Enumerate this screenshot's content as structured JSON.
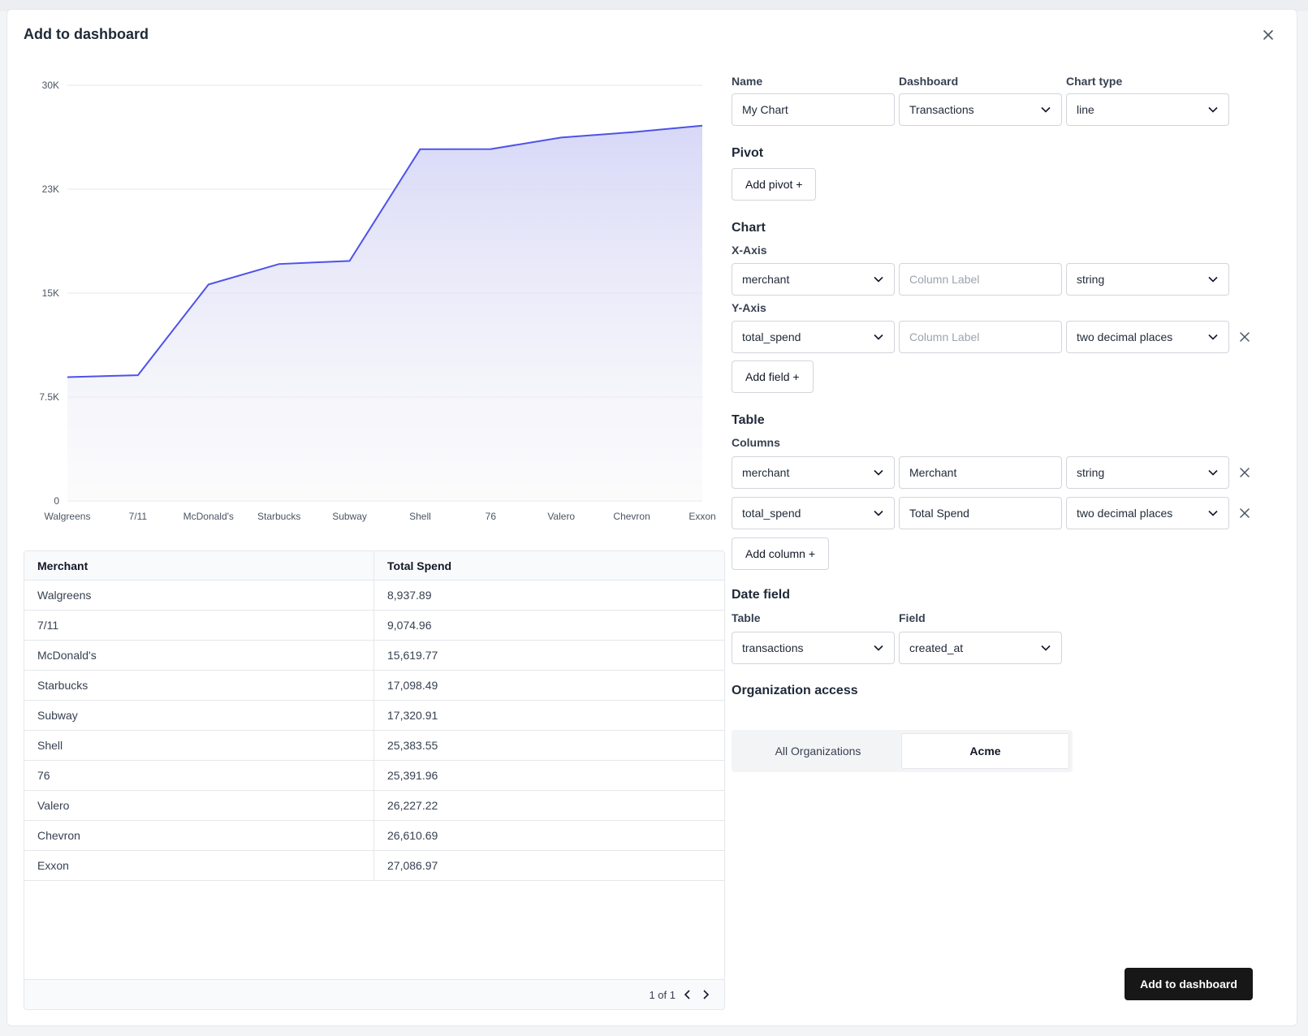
{
  "modal": {
    "title": "Add to dashboard",
    "close_icon": "close-icon",
    "submit_label": "Add to dashboard"
  },
  "chart_data": {
    "type": "area",
    "title": "",
    "xlabel": "",
    "ylabel": "",
    "categories": [
      "Walgreens",
      "7/11",
      "McDonald's",
      "Starbucks",
      "Subway",
      "Shell",
      "76",
      "Valero",
      "Chevron",
      "Exxon"
    ],
    "series": [
      {
        "values": [
          8937.89,
          9074.96,
          15619.77,
          17098.49,
          17320.91,
          25383.55,
          25391.96,
          26227.22,
          26610.69,
          27086.97
        ]
      }
    ],
    "y_ticks": [
      "0",
      "7.5K",
      "15K",
      "23K",
      "30K"
    ],
    "ylim": [
      0,
      30000
    ],
    "grid": true,
    "line_color": "#4f52e8",
    "fill_color": "#d7d8f7"
  },
  "table": {
    "headers": [
      "Merchant",
      "Total Spend"
    ],
    "rows": [
      [
        "Walgreens",
        "8,937.89"
      ],
      [
        "7/11",
        "9,074.96"
      ],
      [
        "McDonald's",
        "15,619.77"
      ],
      [
        "Starbucks",
        "17,098.49"
      ],
      [
        "Subway",
        "17,320.91"
      ],
      [
        "Shell",
        "25,383.55"
      ],
      [
        "76",
        "25,391.96"
      ],
      [
        "Valero",
        "26,227.22"
      ],
      [
        "Chevron",
        "26,610.69"
      ],
      [
        "Exxon",
        "27,086.97"
      ]
    ],
    "pagination": "1 of 1"
  },
  "form": {
    "name_label": "Name",
    "name_value": "My Chart",
    "dashboard_label": "Dashboard",
    "dashboard_value": "Transactions",
    "chart_type_label": "Chart type",
    "chart_type_value": "line",
    "pivot_title": "Pivot",
    "add_pivot": "Add pivot +",
    "chart_title": "Chart",
    "x_axis_label": "X-Axis",
    "x_field": "merchant",
    "x_column_label_placeholder": "Column Label",
    "x_format": "string",
    "y_axis_label": "Y-Axis",
    "y_field": "total_spend",
    "y_column_label_placeholder": "Column Label",
    "y_format": "two decimal places",
    "add_field": "Add field +",
    "table_title": "Table",
    "columns_label": "Columns",
    "columns": [
      {
        "field": "merchant",
        "label": "Merchant",
        "format": "string"
      },
      {
        "field": "total_spend",
        "label": "Total Spend",
        "format": "two decimal places"
      }
    ],
    "add_column": "Add column +",
    "date_field_title": "Date field",
    "date_table_label": "Table",
    "date_table_value": "transactions",
    "date_field_label": "Field",
    "date_field_value": "created_at",
    "org_access_title": "Organization access",
    "org_options": [
      "All Organizations",
      "Acme"
    ],
    "org_selected": "Acme"
  }
}
